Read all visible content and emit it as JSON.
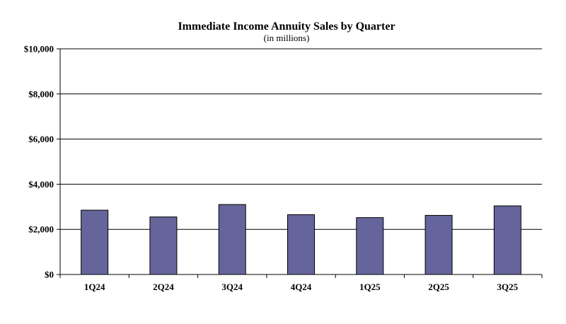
{
  "chart_data": {
    "type": "bar",
    "title": "Immediate Income Annuity Sales by Quarter",
    "subtitle": "(in millions)",
    "xlabel": "",
    "ylabel": "",
    "categories": [
      "1Q24",
      "2Q24",
      "3Q24",
      "4Q24",
      "1Q25",
      "2Q25",
      "3Q25"
    ],
    "values": [
      2850,
      2550,
      3100,
      2650,
      2520,
      2620,
      3040
    ],
    "ylim": [
      0,
      10000
    ],
    "yticks": [
      0,
      2000,
      4000,
      6000,
      8000,
      10000
    ],
    "ytick_labels": [
      "$0",
      "$2,000",
      "$4,000",
      "$6,000",
      "$8,000",
      "$10,000"
    ],
    "grid": true,
    "legend": "none",
    "bar_color": "#65659b",
    "bar_outline_color": "#000000",
    "grid_color": "#000000"
  }
}
